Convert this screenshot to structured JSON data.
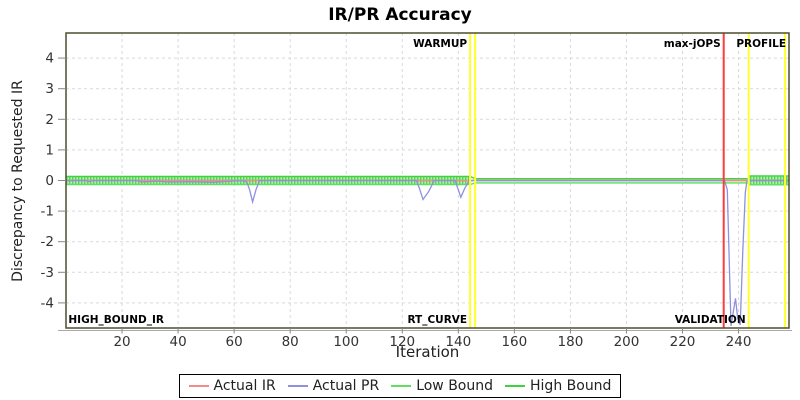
{
  "title": "IR/PR Accuracy",
  "chart_data": {
    "type": "line",
    "title": "IR/PR Accuracy",
    "xlabel": "Iteration",
    "ylabel": "Discrepancy to Requested IR",
    "xlim": [
      0,
      258
    ],
    "ylim": [
      -4.82,
      4.82
    ],
    "grid": true,
    "legend_position": "bottom-center",
    "x_ticks": [
      20,
      40,
      60,
      80,
      100,
      120,
      140,
      160,
      180,
      200,
      220,
      240
    ],
    "y_ticks": [
      -4,
      -3,
      -2,
      -1,
      0,
      1,
      2,
      3,
      4
    ],
    "colors": {
      "actual_ir": "#f28b8b",
      "actual_pr": "#8f90e0",
      "low_bound": "#5ee05e",
      "high_bound": "#3fd43f",
      "band_fill_bright": "#aef0ae",
      "band_hatch": "#54d854",
      "band_fill_pale": "#e6f7e6",
      "marker_yellow": "#ffff2e",
      "marker_red": "#ff3b3b",
      "grid": "#d9d9d9",
      "border": "#4f4f2f",
      "zero_line": "#77774a"
    },
    "series": [
      {
        "name": "Actual IR",
        "color": "#f28b8b",
        "points": [
          [
            0,
            0
          ],
          [
            258,
            0
          ]
        ]
      },
      {
        "name": "Actual PR",
        "color": "#8f90e0",
        "points": [
          [
            0,
            0
          ],
          [
            7,
            0
          ],
          [
            8,
            -0.04
          ],
          [
            10,
            0
          ],
          [
            25,
            0
          ],
          [
            27,
            -0.05
          ],
          [
            33,
            -0.02
          ],
          [
            36,
            -0.05
          ],
          [
            45,
            -0.04
          ],
          [
            52,
            -0.06
          ],
          [
            58,
            -0.03
          ],
          [
            63,
            0
          ],
          [
            64.5,
            -0.05
          ],
          [
            65.5,
            -0.3
          ],
          [
            66.6,
            -0.7
          ],
          [
            67.8,
            -0.3
          ],
          [
            69.1,
            0
          ],
          [
            125,
            0
          ],
          [
            126.1,
            -0.25
          ],
          [
            127.4,
            -0.62
          ],
          [
            129.5,
            -0.35
          ],
          [
            131.4,
            0
          ],
          [
            138.8,
            0
          ],
          [
            140,
            -0.3
          ],
          [
            140.9,
            -0.55
          ],
          [
            142.3,
            -0.25
          ],
          [
            143.9,
            0
          ],
          [
            235,
            0
          ],
          [
            236,
            -0.3
          ],
          [
            237.3,
            -4.75
          ],
          [
            238.2,
            -4.25
          ],
          [
            238.9,
            -3.85
          ],
          [
            239.7,
            -4.5
          ],
          [
            240.6,
            -4.72
          ],
          [
            241.5,
            -2.3
          ],
          [
            242.4,
            -0.4
          ],
          [
            243,
            0
          ],
          [
            258,
            0
          ]
        ]
      },
      {
        "name": "Low Bound",
        "color": "#5ee05e",
        "points": [
          [
            0,
            -0.13
          ],
          [
            144.2,
            -0.13
          ],
          [
            146,
            -0.08
          ],
          [
            243.6,
            -0.08
          ],
          [
            244,
            -0.14
          ],
          [
            258,
            -0.14
          ]
        ]
      },
      {
        "name": "High Bound",
        "color": "#3fd43f",
        "points": [
          [
            0,
            0.13
          ],
          [
            144.2,
            0.13
          ],
          [
            146,
            0.06
          ],
          [
            243.6,
            0.06
          ],
          [
            244,
            0.15
          ],
          [
            258,
            0.15
          ]
        ]
      }
    ],
    "bands": [
      {
        "x0": 0,
        "x1": 144.2,
        "low": -0.13,
        "high": 0.13,
        "style": "hatched"
      },
      {
        "x0": 146,
        "x1": 243.6,
        "low": -0.08,
        "high": 0.06,
        "style": "plain"
      },
      {
        "x0": 244,
        "x1": 258,
        "low": -0.14,
        "high": 0.15,
        "style": "hatched"
      }
    ],
    "markers": [
      {
        "name": "warmup-start-line",
        "x": 144.2,
        "color": "#ffff2e",
        "width": 2
      },
      {
        "name": "warmup-end-line",
        "x": 146,
        "color": "#ffff2e",
        "width": 2
      },
      {
        "name": "max-jops-line",
        "x": 234.7,
        "color": "#ff3b3b",
        "width": 2
      },
      {
        "name": "profile-start-line",
        "x": 243.6,
        "color": "#ffff2e",
        "width": 2
      },
      {
        "name": "profile-end-line",
        "x": 256.6,
        "color": "#ffff2e",
        "width": 2
      }
    ],
    "annotations": [
      {
        "text": "WARMUP",
        "x": 144.2,
        "side": "top",
        "align": "right"
      },
      {
        "text": "max-jOPS",
        "x": 234.7,
        "side": "top",
        "align": "right"
      },
      {
        "text": "PROFILE",
        "x": 258,
        "side": "top",
        "align": "right"
      },
      {
        "text": "HIGH_BOUND_IR",
        "x": 0.5,
        "side": "bottom",
        "align": "left"
      },
      {
        "text": "RT_CURVE",
        "x": 144.2,
        "side": "bottom",
        "align": "right"
      },
      {
        "text": "VALIDATION",
        "x": 243.6,
        "side": "bottom",
        "align": "right"
      }
    ]
  }
}
